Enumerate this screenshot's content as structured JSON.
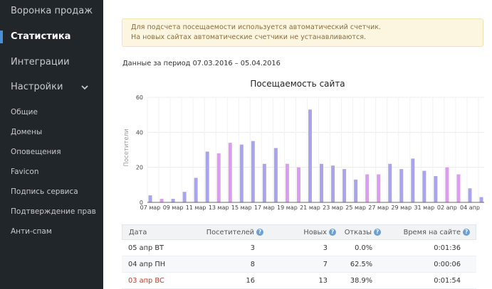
{
  "sidebar": {
    "items": [
      {
        "label": "Воронка продаж",
        "active": false
      },
      {
        "label": "Статистика",
        "active": true
      },
      {
        "label": "Интеграции",
        "active": false
      },
      {
        "label": "Настройки",
        "active": false
      }
    ],
    "subitems": [
      "Общие",
      "Домены",
      "Оповещения",
      "Favicon",
      "Подпись сервиса",
      "Подтверждение прав",
      "Анти-спам"
    ],
    "accent_color": "#4a90d9"
  },
  "alert": {
    "line1": "Для подсчета посещаемости используется автоматический счетчик.",
    "line2": "На новых сайтах автоматические счетчики не устанавливаются."
  },
  "period": "Данные за период 07.03.2016 – 05.04.2016",
  "chart_data": {
    "type": "bar",
    "title": "Посещаемость сайта",
    "ylabel": "Посетители",
    "xlabel": "",
    "ylim": [
      0,
      60
    ],
    "yticks": [
      0,
      20,
      40,
      60
    ],
    "grid": true,
    "categories": [
      "07 мар",
      "08 мар",
      "09 мар",
      "10 мар",
      "11 мар",
      "12 мар",
      "13 мар",
      "14 мар",
      "15 мар",
      "16 мар",
      "17 мар",
      "18 мар",
      "19 мар",
      "20 мар",
      "21 мар",
      "22 мар",
      "23 мар",
      "24 мар",
      "25 мар",
      "26 мар",
      "27 мар",
      "28 мар",
      "29 мар",
      "30 мар",
      "31 мар",
      "01 апр",
      "02 апр",
      "03 апр",
      "04 апр",
      "05 апр"
    ],
    "tick_labels": [
      "07 мар",
      "09 мар",
      "11 мар",
      "13 мар",
      "15 мар",
      "17 мар",
      "19 мар",
      "21 мар",
      "23 мар",
      "25 мар",
      "27 мар",
      "29 мар",
      "31 мар",
      "02 апр",
      "04 апр"
    ],
    "values": [
      4,
      2,
      2,
      6,
      14,
      29,
      28,
      34,
      33,
      35,
      22,
      31,
      22,
      20,
      53,
      22,
      21,
      19,
      13,
      16,
      16,
      22,
      19,
      25,
      18,
      15,
      20,
      16,
      8,
      3
    ],
    "weekend": [
      false,
      true,
      false,
      false,
      false,
      false,
      true,
      true,
      false,
      false,
      false,
      false,
      true,
      true,
      false,
      false,
      false,
      false,
      false,
      true,
      true,
      false,
      false,
      false,
      false,
      false,
      true,
      true,
      false,
      false
    ],
    "colors": {
      "weekday": "#a9a4ee",
      "weekend": "#dc9df0"
    }
  },
  "table": {
    "headers": [
      "Дата",
      "Посетителей",
      "Новых",
      "Отказы",
      "Время на сайте"
    ],
    "rows": [
      {
        "date": "05 апр ВТ",
        "visitors": "3",
        "new": "3",
        "bounce": "0.0%",
        "time": "0:01:36",
        "weekend": false
      },
      {
        "date": "04 апр ПН",
        "visitors": "8",
        "new": "7",
        "bounce": "62.5%",
        "time": "0:00:06",
        "weekend": false
      },
      {
        "date": "03 апр ВС",
        "visitors": "16",
        "new": "13",
        "bounce": "38.9%",
        "time": "0:01:54",
        "weekend": true
      }
    ]
  }
}
